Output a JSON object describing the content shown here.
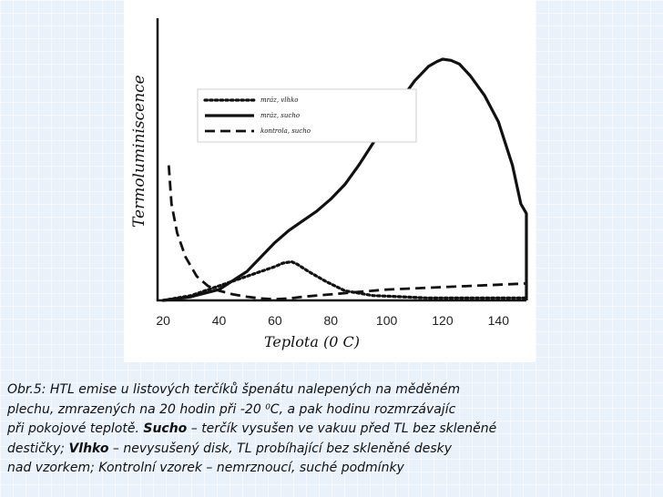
{
  "chart_data": {
    "type": "line",
    "ylabel": "Termoluminiscence",
    "xlabel": "Teplota (0 C)",
    "xlim": [
      18,
      150
    ],
    "ylim": [
      0,
      100
    ],
    "xticks": [
      20,
      40,
      60,
      80,
      100,
      120,
      140
    ],
    "grid": false,
    "legend_position": "top-left",
    "series": [
      {
        "name": "mráz, vlhko",
        "style": "dotted",
        "x": [
          20,
          30,
          40,
          50,
          55,
          60,
          63,
          66,
          68,
          72,
          78,
          85,
          95,
          105,
          115,
          125,
          135,
          145,
          150
        ],
        "y": [
          0,
          2,
          6,
          10,
          12,
          14,
          15.5,
          16,
          15,
          12,
          8,
          4,
          2,
          1.5,
          1,
          1,
          1,
          1,
          1
        ]
      },
      {
        "name": "mráz, sucho",
        "style": "solid",
        "x": [
          20,
          30,
          40,
          50,
          60,
          65,
          70,
          75,
          80,
          85,
          90,
          95,
          100,
          105,
          110,
          115,
          118,
          120,
          123,
          126,
          130,
          135,
          140,
          145,
          148,
          150,
          150
        ],
        "y": [
          0,
          1.5,
          4.5,
          12,
          24,
          29,
          33,
          37,
          42,
          48,
          56,
          65,
          74,
          83,
          91,
          97,
          99,
          100,
          99.5,
          98,
          93,
          85,
          74,
          56,
          40,
          36,
          0
        ]
      },
      {
        "name": "kontrola, sucho",
        "style": "dashed",
        "x": [
          22,
          23,
          25,
          28,
          32,
          36,
          40,
          45,
          50,
          55,
          60,
          65,
          70,
          80,
          90,
          100,
          110,
          120,
          130,
          140,
          150
        ],
        "y": [
          56,
          40,
          28,
          18,
          10,
          6,
          4,
          2.5,
          1.5,
          0.8,
          0.5,
          0.8,
          1.5,
          2.5,
          3.5,
          4.5,
          5,
          5.5,
          6,
          6.5,
          7
        ]
      }
    ]
  },
  "caption": {
    "line1": "Obr.5: HTL emise u listových terčíků špenátu nalepených na měděném",
    "line2": "plechu, zmrazených na 20 hodin při -20 ⁰C, a pak hodinu rozmrzávajíc",
    "line3_a": "při pokojové teplotě. ",
    "line3_b": "Sucho",
    "line3_c": " – terčík vysušen ve vakuu před TL bez      skleněné",
    "line4_a": "destičky; ",
    "line4_b": "Vlhko",
    "line4_c": " – nevysušený disk, TL probíhající bez          skleněné desky",
    "line5": "nad vzorkem; Kontrolní vzorek – nemrznoucí, suché  podmínky"
  }
}
